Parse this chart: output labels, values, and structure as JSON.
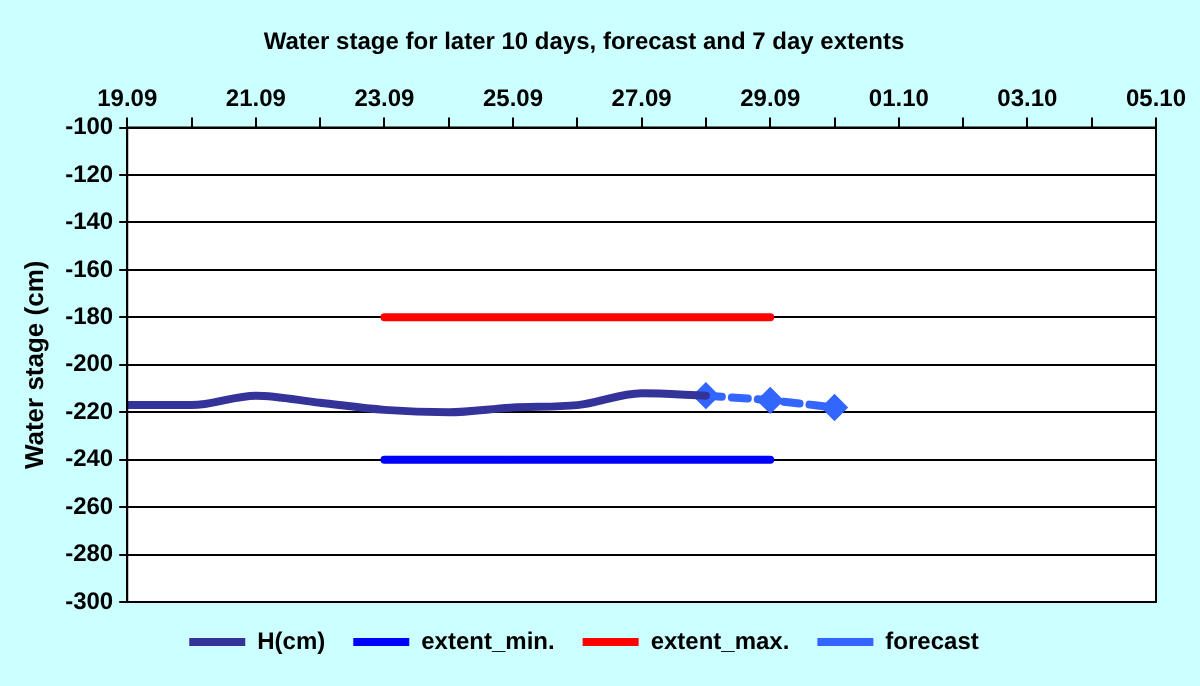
{
  "chart_data": {
    "type": "line",
    "title": "Water stage for later 10 days, forecast and 7 day extents",
    "ylabel": "Water stage (cm)",
    "xlim": [
      "--09-19",
      "--10-05"
    ],
    "xticks": [
      {
        "value": "--09-19",
        "label": "19.09"
      },
      {
        "value": "--09-20",
        "label": null
      },
      {
        "value": "--09-21",
        "label": "21.09"
      },
      {
        "value": "--09-22",
        "label": null
      },
      {
        "value": "--09-23",
        "label": "23.09"
      },
      {
        "value": "--09-24",
        "label": null
      },
      {
        "value": "--09-25",
        "label": "25.09"
      },
      {
        "value": "--09-26",
        "label": null
      },
      {
        "value": "--09-27",
        "label": "27.09"
      },
      {
        "value": "--09-28",
        "label": null
      },
      {
        "value": "--09-29",
        "label": "29.09"
      },
      {
        "value": "--09-30",
        "label": null
      },
      {
        "value": "--10-01",
        "label": "01.10"
      },
      {
        "value": "--10-02",
        "label": null
      },
      {
        "value": "--10-03",
        "label": "03.10"
      },
      {
        "value": "--10-04",
        "label": null
      },
      {
        "value": "--10-05",
        "label": "05.10"
      }
    ],
    "ylim": [
      -300,
      -100
    ],
    "yticks": [
      -300,
      -280,
      -260,
      -240,
      -220,
      -200,
      -180,
      -160,
      -140,
      -120,
      -100
    ],
    "grid": "y",
    "legend": "bottom",
    "marker": "none",
    "line_style": "solid",
    "series": [
      {
        "name": "H(cm)",
        "color": "#333399",
        "x": [
          "--09-19",
          "--09-20",
          "--09-21",
          "--09-22",
          "--09-23",
          "--09-24",
          "--09-25",
          "--09-26",
          "--09-27",
          "--09-28"
        ],
        "values": [
          -217,
          -217,
          -213,
          -216,
          -219,
          -220,
          -218,
          -217,
          -212,
          -213
        ]
      },
      {
        "name": "extent_min.",
        "color": "#0000ff",
        "x": [
          "--09-23",
          "--09-29"
        ],
        "values": [
          -240,
          -240
        ]
      },
      {
        "name": "extent_max.",
        "color": "#ff0000",
        "x": [
          "--09-23",
          "--09-29"
        ],
        "values": [
          -180,
          -180
        ]
      },
      {
        "name": "forecast",
        "color": "#3366ff",
        "x": [
          "--09-28",
          "--09-29",
          "--09-30"
        ],
        "values": [
          -213,
          -215,
          -218
        ],
        "line_style": "dashed",
        "marker": "diamond"
      }
    ]
  }
}
